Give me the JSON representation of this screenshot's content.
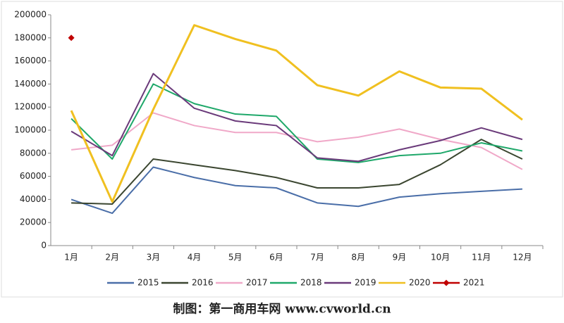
{
  "chart_data": {
    "type": "line",
    "categories": [
      "1月",
      "2月",
      "3月",
      "4月",
      "5月",
      "6月",
      "7月",
      "8月",
      "9月",
      "10月",
      "11月",
      "12月"
    ],
    "series": [
      {
        "name": "2015",
        "color": "#4a6ea8",
        "values": [
          40000,
          28000,
          68000,
          59000,
          52000,
          50000,
          37000,
          34000,
          42000,
          45000,
          47000,
          49000
        ]
      },
      {
        "name": "2016",
        "color": "#3b4630",
        "values": [
          37000,
          36000,
          75000,
          70000,
          65000,
          59000,
          50000,
          50000,
          53000,
          70000,
          92000,
          75000
        ]
      },
      {
        "name": "2017",
        "color": "#f0a8c8",
        "values": [
          83000,
          87000,
          115000,
          104000,
          98000,
          98000,
          90000,
          94000,
          101000,
          92000,
          85000,
          66000
        ]
      },
      {
        "name": "2018",
        "color": "#1fa86a",
        "values": [
          110000,
          75000,
          140000,
          123000,
          114000,
          112000,
          75000,
          72000,
          78000,
          80000,
          89000,
          82000
        ]
      },
      {
        "name": "2019",
        "color": "#6a3a7a",
        "values": [
          99000,
          78000,
          149000,
          119000,
          108000,
          104000,
          76000,
          73000,
          83000,
          91000,
          102000,
          92000
        ]
      },
      {
        "name": "2020",
        "color": "#f0c020",
        "values": [
          117000,
          38000,
          118000,
          191000,
          179000,
          169000,
          139000,
          130000,
          151000,
          137000,
          136000,
          109000
        ]
      },
      {
        "name": "2021",
        "color": "#c00000",
        "marker": "diamond",
        "values": [
          180000,
          null,
          null,
          null,
          null,
          null,
          null,
          null,
          null,
          null,
          null,
          null
        ]
      }
    ],
    "ylim": [
      0,
      200000
    ],
    "yticks": [
      0,
      20000,
      40000,
      60000,
      80000,
      100000,
      120000,
      140000,
      160000,
      180000,
      200000
    ],
    "grid": false,
    "legend": "bottom",
    "caption": "制图：第一商用车网 www.cvworld.cn"
  }
}
